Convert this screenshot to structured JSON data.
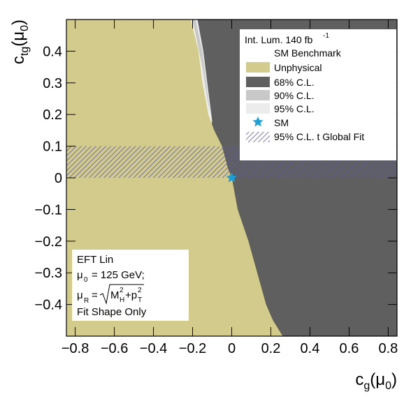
{
  "chart_data": {
    "type": "contour",
    "xlabel": {
      "text": "c",
      "sub": "g",
      "open": "(μ",
      "sub2": "0",
      "close": ")"
    },
    "ylabel": {
      "text": "c",
      "sub": "tg",
      "open": "(μ",
      "sub2": "0",
      "close": ")"
    },
    "xlim": [
      -0.845,
      0.845
    ],
    "ylim": [
      -0.5,
      0.5
    ],
    "xticks": [
      {
        "value": -0.8,
        "label": "−0.8"
      },
      {
        "value": -0.6,
        "label": "−0.6"
      },
      {
        "value": -0.4,
        "label": "−0.4"
      },
      {
        "value": -0.2,
        "label": "−0.2"
      },
      0,
      0.2,
      0.4,
      0.6,
      0.8
    ],
    "yticks": [
      {
        "value": -0.4,
        "label": "−0.4"
      },
      {
        "value": -0.3,
        "label": "−0.3"
      },
      {
        "value": -0.2,
        "label": "−0.2"
      },
      {
        "value": -0.1,
        "label": "−0.1"
      },
      0,
      0.1,
      0.2,
      0.3,
      0.4
    ],
    "series": [
      {
        "name": "Unphysical",
        "color": "#d2cb8c",
        "x": [
          -0.845,
          -0.21,
          -0.19,
          -0.17,
          -0.15,
          -0.12,
          -0.09,
          -0.05,
          -0.02,
          0,
          0.03,
          0.085,
          0.13,
          0.175,
          0.21,
          0.26,
          -0.845
        ],
        "y": [
          0.5,
          0.5,
          0.45,
          0.4,
          0.3,
          0.2,
          0.15,
          0.1,
          0.03,
          0,
          -0.1,
          -0.2,
          -0.3,
          -0.4,
          -0.45,
          -0.5,
          -0.5
        ]
      },
      {
        "name": "68% C.L.",
        "color": "#5f5f5f",
        "x": [
          -0.21,
          0.845,
          0.845,
          0.26,
          0.21,
          0.175,
          0.13,
          0.085,
          0.03,
          0,
          -0.02,
          -0.05,
          -0.09,
          -0.12,
          -0.15,
          -0.17,
          -0.19
        ],
        "y": [
          0.5,
          0.5,
          -0.5,
          -0.5,
          -0.45,
          -0.4,
          -0.3,
          -0.2,
          -0.1,
          0,
          0.03,
          0.1,
          0.15,
          0.2,
          0.3,
          0.4,
          0.45
        ]
      },
      {
        "name": "90% C.L.",
        "color": "#c8c8c8",
        "x": [
          -0.2,
          -0.185,
          -0.15,
          -0.13,
          -0.11,
          -0.125,
          -0.15
        ],
        "y": [
          0.5,
          0.5,
          0.4,
          0.3,
          0.2,
          0.25,
          0.35
        ]
      },
      {
        "name": "95% C.L.",
        "color": "#ececec",
        "x": [
          -0.21,
          -0.175,
          -0.145,
          -0.125,
          -0.1,
          -0.105,
          -0.12,
          -0.15
        ],
        "y": [
          0.5,
          0.5,
          0.4,
          0.3,
          0.18,
          0.16,
          0.2,
          0.3
        ]
      },
      {
        "name": "95% C.L. t Global Fit",
        "color": "#5a5aa8",
        "x": [
          -0.845,
          0.845,
          0.845,
          -0.845
        ],
        "y": [
          0,
          0,
          0.1,
          0.1
        ]
      }
    ],
    "points": [
      {
        "name": "SM",
        "color": "#1f9fd4",
        "x": 0,
        "y": 0
      }
    ],
    "legend": {
      "header": "Int. Lum. 140 fb",
      "header_sup": "-1",
      "benchmark": "SM Benchmark"
    },
    "annotation": {
      "line1": "EFT Lin",
      "mu0": {
        "symbol": "μ",
        "sub": "0",
        "text": "= 125 GeV;"
      },
      "muR": {
        "symbol": "μ",
        "sub": "R",
        "eq": "=",
        "m": "M",
        "m_sup": "2",
        "m_sub": "H",
        "plus": "+p",
        "p_sup": "2",
        "p_sub": "T"
      },
      "line4": "Fit Shape Only"
    }
  }
}
